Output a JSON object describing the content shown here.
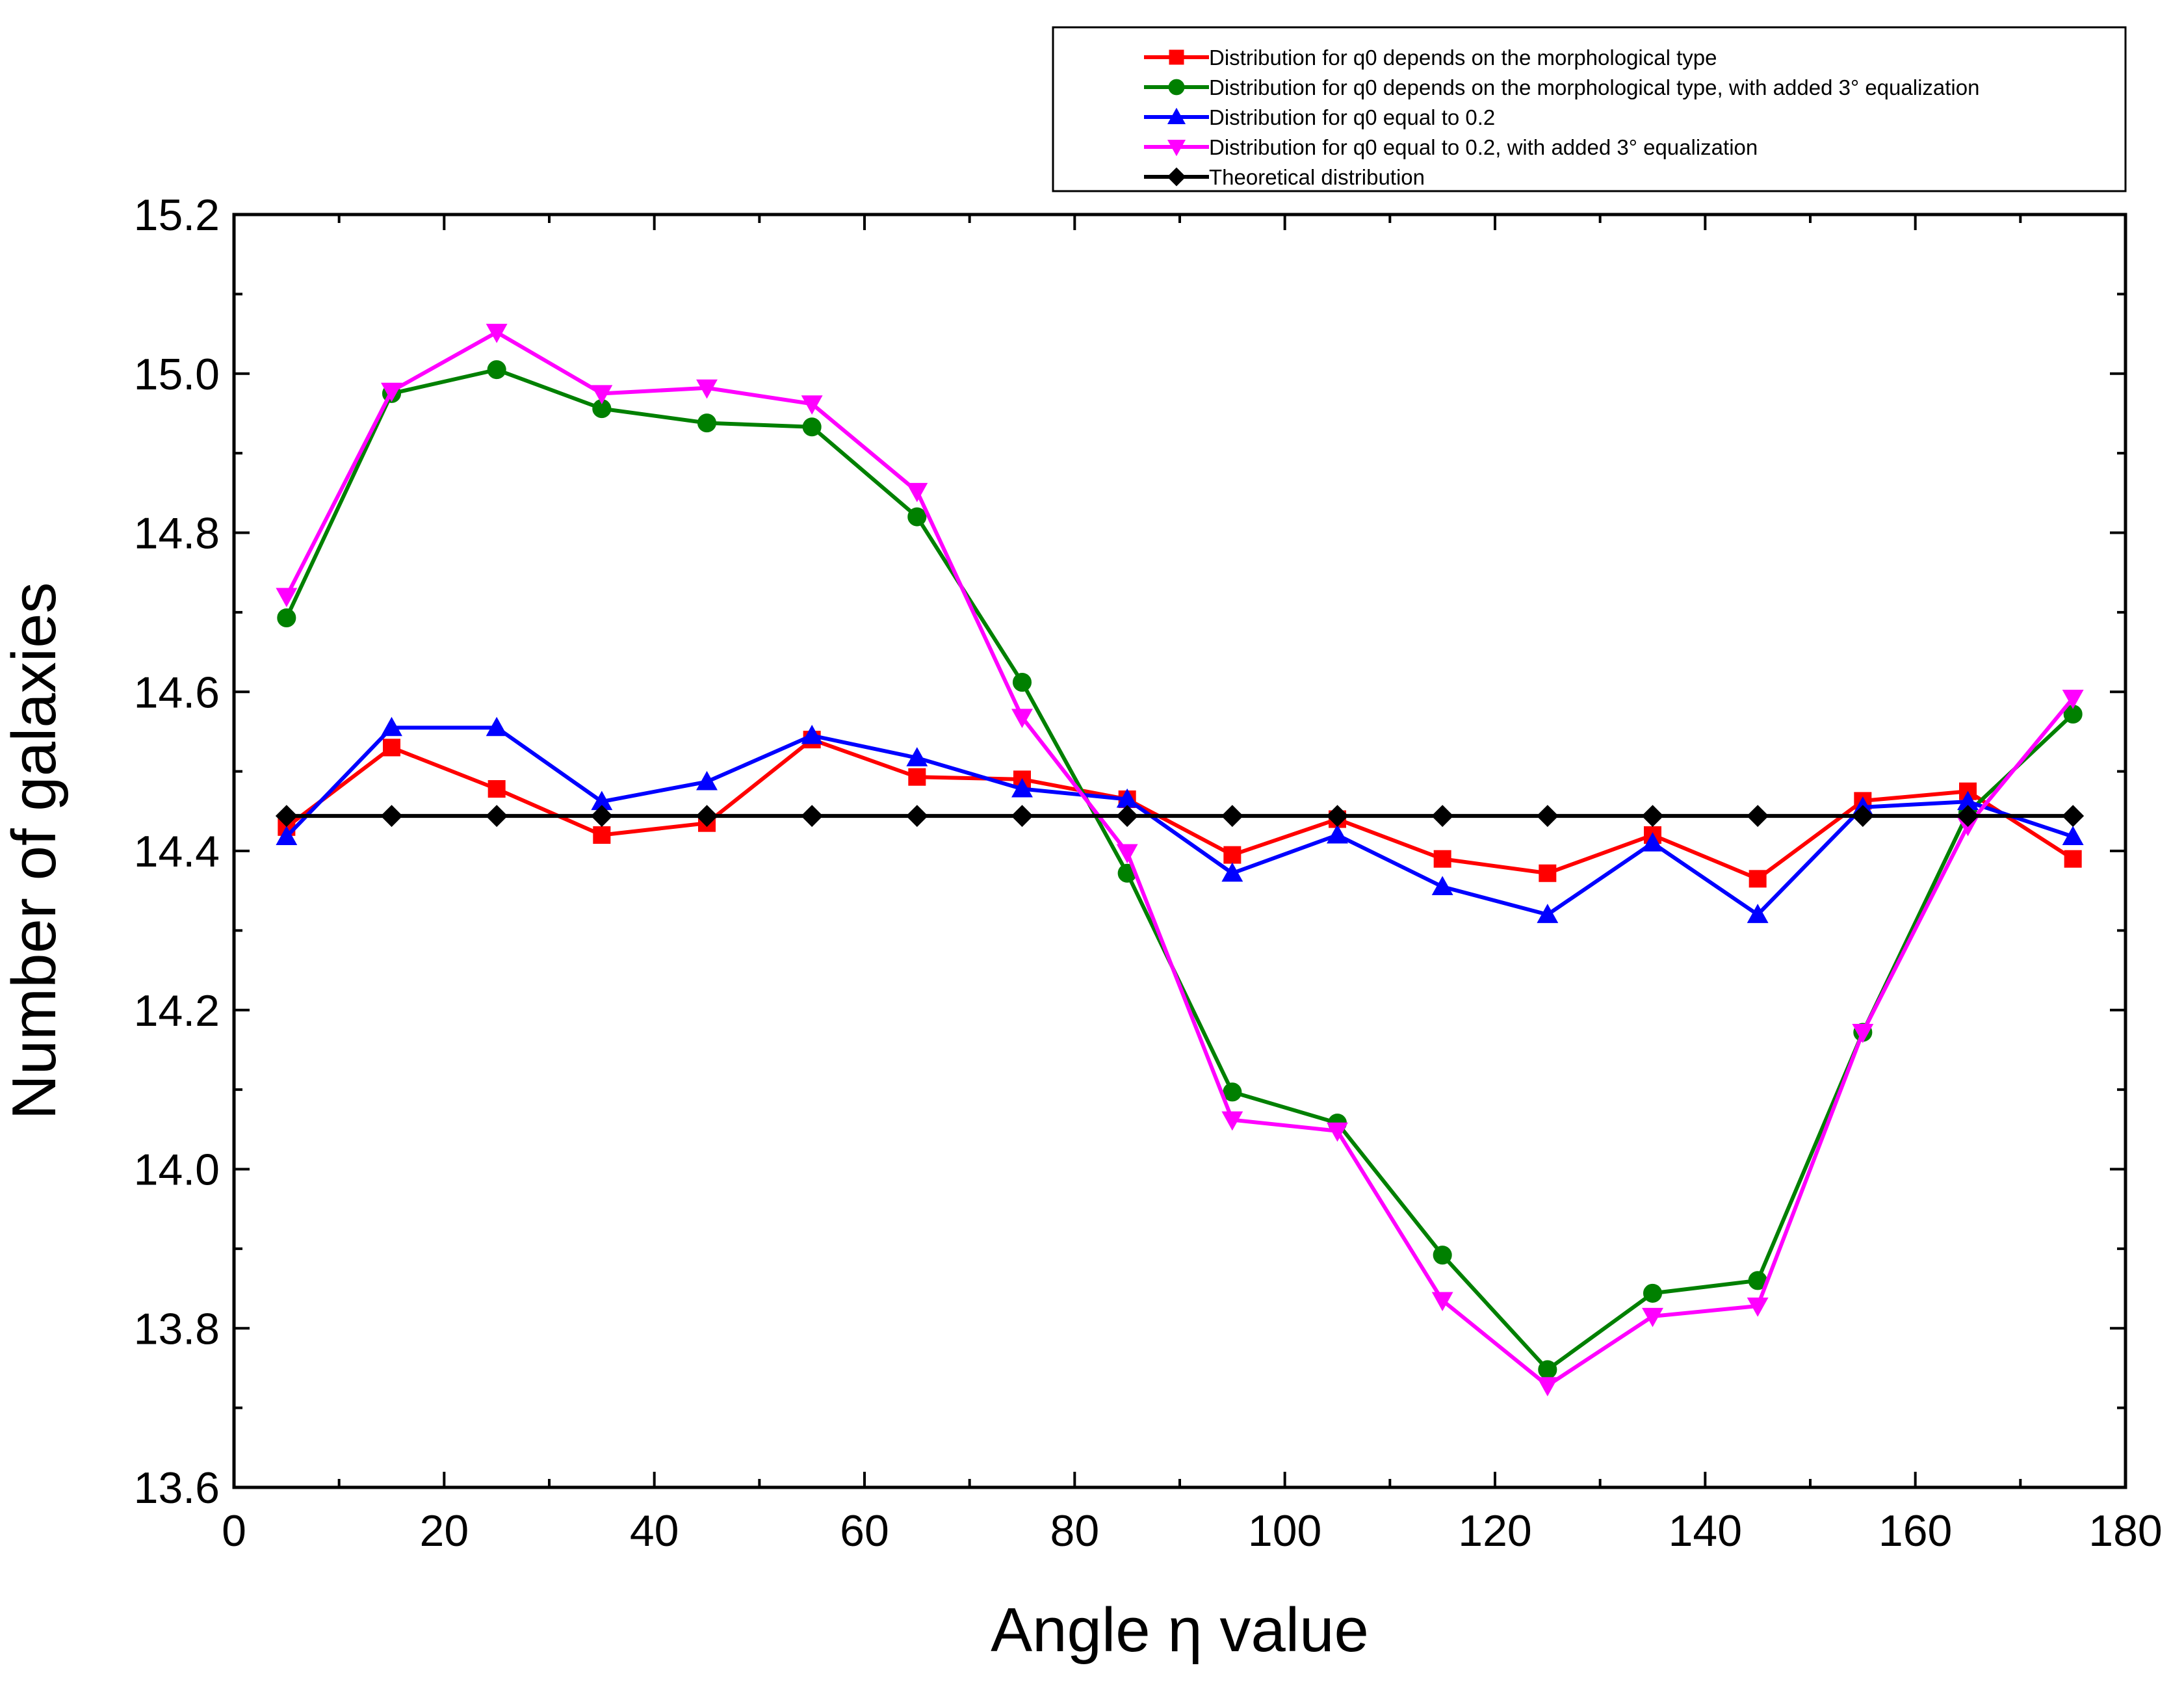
{
  "chart_data": {
    "type": "line",
    "title": "",
    "xlabel": "Angle η value",
    "ylabel": "Number of galaxies",
    "xlim": [
      0,
      180
    ],
    "ylim": [
      13.6,
      15.2
    ],
    "xticks": [
      0,
      20,
      40,
      60,
      80,
      100,
      120,
      140,
      160,
      180
    ],
    "yticks": [
      13.6,
      13.8,
      14.0,
      14.2,
      14.4,
      14.6,
      14.8,
      15.0,
      15.2
    ],
    "xtick_labels": [
      "0",
      "20",
      "40",
      "60",
      "80",
      "100",
      "120",
      "140",
      "160",
      "180"
    ],
    "ytick_labels": [
      "13.6",
      "13.8",
      "14.0",
      "14.2",
      "14.4",
      "14.6",
      "14.8",
      "15.0",
      "15.2"
    ],
    "grid": false,
    "legend_position": "top-right",
    "x": [
      5,
      15,
      25,
      35,
      45,
      55,
      65,
      75,
      85,
      95,
      105,
      115,
      125,
      135,
      145,
      155,
      165,
      175
    ],
    "series": [
      {
        "name": "Distribution for q0 depends on the morphological type",
        "color": "#ff0000",
        "marker": "square",
        "values": [
          14.43,
          14.53,
          14.478,
          14.42,
          14.435,
          14.54,
          14.493,
          14.49,
          14.465,
          14.395,
          14.44,
          14.39,
          14.372,
          14.42,
          14.365,
          14.463,
          14.475,
          14.39
        ]
      },
      {
        "name": "Distribution for q0 depends on the morphological type, with added 3° equalization",
        "color": "#008000",
        "marker": "circle",
        "values": [
          14.693,
          14.975,
          15.005,
          14.956,
          14.938,
          14.933,
          14.82,
          14.612,
          14.372,
          14.097,
          14.058,
          13.892,
          13.748,
          13.844,
          13.86,
          14.172,
          14.448,
          14.572
        ]
      },
      {
        "name": "Distribution for q0 equal to 0.2",
        "color": "#0000ff",
        "marker": "triangle-up",
        "values": [
          14.418,
          14.555,
          14.555,
          14.462,
          14.487,
          14.545,
          14.517,
          14.478,
          14.465,
          14.372,
          14.42,
          14.355,
          14.32,
          14.41,
          14.32,
          14.455,
          14.462,
          14.418
        ]
      },
      {
        "name": "Distribution for q0 equal to 0.2, with added 3° equalization",
        "color": "#ff00ff",
        "marker": "triangle-down",
        "values": [
          14.72,
          14.978,
          15.052,
          14.975,
          14.982,
          14.962,
          14.852,
          14.568,
          14.398,
          14.062,
          14.048,
          13.835,
          13.728,
          13.815,
          13.828,
          14.172,
          14.432,
          14.592
        ]
      },
      {
        "name": "Theoretical distribution",
        "color": "#000000",
        "marker": "diamond",
        "values": [
          14.444,
          14.444,
          14.444,
          14.444,
          14.444,
          14.444,
          14.444,
          14.444,
          14.444,
          14.444,
          14.444,
          14.444,
          14.444,
          14.444,
          14.444,
          14.444,
          14.444,
          14.444
        ]
      }
    ]
  }
}
